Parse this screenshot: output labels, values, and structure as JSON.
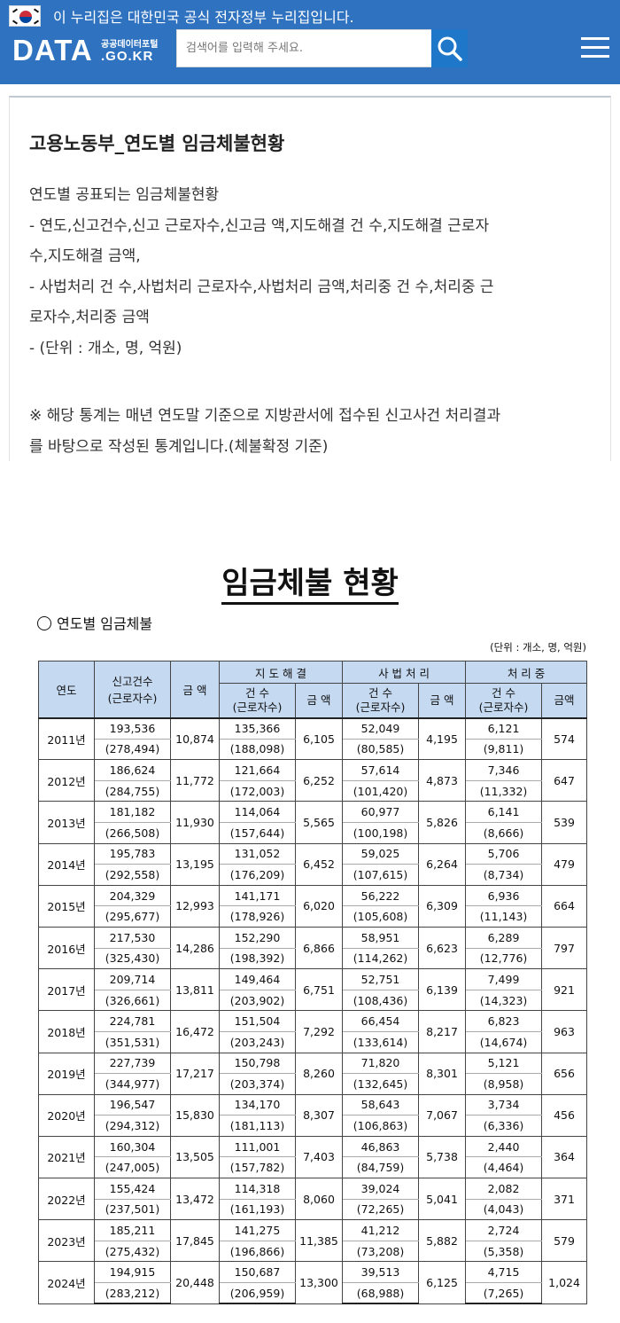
{
  "header": {
    "gov_notice": "이 누리집은 대한민국 공식 전자정부 누리집입니다.",
    "logo_main": "DATA",
    "logo_sub_top": "공공데이터포털",
    "logo_sub_bottom": ".GO.KR",
    "search_placeholder": "검색어를 입력해 주세요.",
    "colors": {
      "header_bg": "#2e72c0",
      "search_button": "#1f77c9"
    },
    "icons": [
      "korea-flag-icon",
      "search-icon",
      "hamburger-menu-icon"
    ]
  },
  "dataset": {
    "title": "고용노동부_연도별 임금체불현황",
    "description_lines": [
      "연도별 공표되는 임금체불현황",
      "- 연도,신고건수,신고 근로자수,신고금 액,지도해결 건 수,지도해결 근로자",
      "수,지도해결 금액,",
      "- 사법처리 건 수,사법처리 근로자수,사법처리 금액,처리중 건 수,처리중 근",
      "로자수,처리중 금액",
      "- (단위 : 개소, 명, 억원)"
    ],
    "note_lines": [
      "※ 해당 통계는 매년 연도말 기준으로 지방관서에 접수된 신고사건 처리결과",
      "를 바탕으로 작성된 통계입니다.(체불확정 기준)"
    ]
  },
  "document": {
    "title": "임금체불 현황",
    "section_label": "연도별 임금체불",
    "unit_note": "(단위 : 개소, 명, 억원)",
    "table": {
      "header_row1": {
        "year": "연도",
        "reports": "신고건수",
        "reports_sub": "(근로자수)",
        "amount": "금 액",
        "guidance": "지 도 해 결",
        "judicial": "사 법 처 리",
        "pending": "처 리 중"
      },
      "header_row2": {
        "cases": "건 수",
        "cases_sub": "(근로자수)",
        "amount": "금 액",
        "pending_amount": "금액"
      },
      "rows": [
        {
          "year": "2011년",
          "reports": "193,536",
          "workers": "(278,494)",
          "amount": "10,874",
          "g_cases": "135,366",
          "g_workers": "(188,098)",
          "g_amount": "6,105",
          "j_cases": "52,049",
          "j_workers": "(80,585)",
          "j_amount": "4,195",
          "p_cases": "6,121",
          "p_workers": "(9,811)",
          "p_amount": "574"
        },
        {
          "year": "2012년",
          "reports": "186,624",
          "workers": "(284,755)",
          "amount": "11,772",
          "g_cases": "121,664",
          "g_workers": "(172,003)",
          "g_amount": "6,252",
          "j_cases": "57,614",
          "j_workers": "(101,420)",
          "j_amount": "4,873",
          "p_cases": "7,346",
          "p_workers": "(11,332)",
          "p_amount": "647"
        },
        {
          "year": "2013년",
          "reports": "181,182",
          "workers": "(266,508)",
          "amount": "11,930",
          "g_cases": "114,064",
          "g_workers": "(157,644)",
          "g_amount": "5,565",
          "j_cases": "60,977",
          "j_workers": "(100,198)",
          "j_amount": "5,826",
          "p_cases": "6,141",
          "p_workers": "(8,666)",
          "p_amount": "539"
        },
        {
          "year": "2014년",
          "reports": "195,783",
          "workers": "(292,558)",
          "amount": "13,195",
          "g_cases": "131,052",
          "g_workers": "(176,209)",
          "g_amount": "6,452",
          "j_cases": "59,025",
          "j_workers": "(107,615)",
          "j_amount": "6,264",
          "p_cases": "5,706",
          "p_workers": "(8,734)",
          "p_amount": "479"
        },
        {
          "year": "2015년",
          "reports": "204,329",
          "workers": "(295,677)",
          "amount": "12,993",
          "g_cases": "141,171",
          "g_workers": "(178,926)",
          "g_amount": "6,020",
          "j_cases": "56,222",
          "j_workers": "(105,608)",
          "j_amount": "6,309",
          "p_cases": "6,936",
          "p_workers": "(11,143)",
          "p_amount": "664"
        },
        {
          "year": "2016년",
          "reports": "217,530",
          "workers": "(325,430)",
          "amount": "14,286",
          "g_cases": "152,290",
          "g_workers": "(198,392)",
          "g_amount": "6,866",
          "j_cases": "58,951",
          "j_workers": "(114,262)",
          "j_amount": "6,623",
          "p_cases": "6,289",
          "p_workers": "(12,776)",
          "p_amount": "797"
        },
        {
          "year": "2017년",
          "reports": "209,714",
          "workers": "(326,661)",
          "amount": "13,811",
          "g_cases": "149,464",
          "g_workers": "(203,902)",
          "g_amount": "6,751",
          "j_cases": "52,751",
          "j_workers": "(108,436)",
          "j_amount": "6,139",
          "p_cases": "7,499",
          "p_workers": "(14,323)",
          "p_amount": "921"
        },
        {
          "year": "2018년",
          "reports": "224,781",
          "workers": "(351,531)",
          "amount": "16,472",
          "g_cases": "151,504",
          "g_workers": "(203,243)",
          "g_amount": "7,292",
          "j_cases": "66,454",
          "j_workers": "(133,614)",
          "j_amount": "8,217",
          "p_cases": "6,823",
          "p_workers": "(14,674)",
          "p_amount": "963"
        },
        {
          "year": "2019년",
          "reports": "227,739",
          "workers": "(344,977)",
          "amount": "17,217",
          "g_cases": "150,798",
          "g_workers": "(203,374)",
          "g_amount": "8,260",
          "j_cases": "71,820",
          "j_workers": "(132,645)",
          "j_amount": "8,301",
          "p_cases": "5,121",
          "p_workers": "(8,958)",
          "p_amount": "656"
        },
        {
          "year": "2020년",
          "reports": "196,547",
          "workers": "(294,312)",
          "amount": "15,830",
          "g_cases": "134,170",
          "g_workers": "(181,113)",
          "g_amount": "8,307",
          "j_cases": "58,643",
          "j_workers": "(106,863)",
          "j_amount": "7,067",
          "p_cases": "3,734",
          "p_workers": "(6,336)",
          "p_amount": "456"
        },
        {
          "year": "2021년",
          "reports": "160,304",
          "workers": "(247,005)",
          "amount": "13,505",
          "g_cases": "111,001",
          "g_workers": "(157,782)",
          "g_amount": "7,403",
          "j_cases": "46,863",
          "j_workers": "(84,759)",
          "j_amount": "5,738",
          "p_cases": "2,440",
          "p_workers": "(4,464)",
          "p_amount": "364"
        },
        {
          "year": "2022년",
          "reports": "155,424",
          "workers": "(237,501)",
          "amount": "13,472",
          "g_cases": "114,318",
          "g_workers": "(161,193)",
          "g_amount": "8,060",
          "j_cases": "39,024",
          "j_workers": "(72,265)",
          "j_amount": "5,041",
          "p_cases": "2,082",
          "p_workers": "(4,043)",
          "p_amount": "371"
        },
        {
          "year": "2023년",
          "reports": "185,211",
          "workers": "(275,432)",
          "amount": "17,845",
          "g_cases": "141,275",
          "g_workers": "(196,866)",
          "g_amount": "11,385",
          "j_cases": "41,212",
          "j_workers": "(73,208)",
          "j_amount": "5,882",
          "p_cases": "2,724",
          "p_workers": "(5,358)",
          "p_amount": "579"
        },
        {
          "year": "2024년",
          "reports": "194,915",
          "workers": "(283,212)",
          "amount": "20,448",
          "g_cases": "150,687",
          "g_workers": "(206,959)",
          "g_amount": "13,300",
          "j_cases": "39,513",
          "j_workers": "(68,988)",
          "j_amount": "6,125",
          "p_cases": "4,715",
          "p_workers": "(7,265)",
          "p_amount": "1,024"
        }
      ]
    }
  }
}
